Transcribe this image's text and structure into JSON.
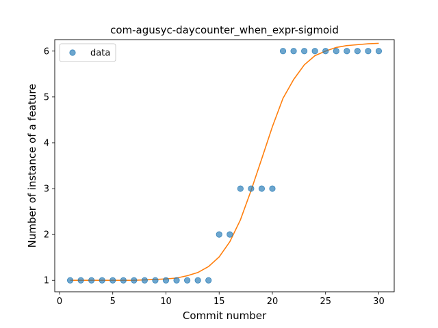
{
  "chart_data": {
    "type": "scatter",
    "title": "com-agusyc-daycounter_when_expr-sigmoid",
    "xlabel": "Commit number",
    "ylabel": "Number of instance of a feature",
    "xlim": [
      -0.45,
      31.45
    ],
    "ylim": [
      0.75,
      6.25
    ],
    "xticks": [
      0,
      5,
      10,
      15,
      20,
      25,
      30
    ],
    "yticks": [
      1,
      2,
      3,
      4,
      5,
      6
    ],
    "grid": false,
    "legend": {
      "position": "top-left",
      "entries": [
        "data"
      ]
    },
    "colors": {
      "data": "#1f77b4",
      "fit": "#ff7f0e"
    },
    "series": [
      {
        "name": "data",
        "kind": "scatter",
        "x": [
          1,
          2,
          3,
          4,
          5,
          6,
          7,
          8,
          9,
          10,
          11,
          12,
          13,
          14,
          15,
          16,
          17,
          18,
          19,
          20,
          21,
          22,
          23,
          24,
          25,
          26,
          27,
          28,
          29,
          30
        ],
        "y": [
          1,
          1,
          1,
          1,
          1,
          1,
          1,
          1,
          1,
          1,
          1,
          1,
          1,
          1,
          2,
          2,
          3,
          3,
          3,
          3,
          6,
          6,
          6,
          6,
          6,
          6,
          6,
          6,
          6,
          6
        ]
      },
      {
        "kind": "line",
        "x": [
          1,
          2,
          3,
          4,
          5,
          6,
          7,
          8,
          9,
          10,
          11,
          12,
          13,
          14,
          15,
          16,
          17,
          18,
          19,
          20,
          21,
          22,
          23,
          24,
          25,
          26,
          27,
          28,
          29,
          30
        ],
        "y": [
          1.0,
          1.0,
          1.0,
          1.0,
          1.0,
          1.0,
          1.0,
          1.01,
          1.02,
          1.03,
          1.05,
          1.1,
          1.17,
          1.3,
          1.51,
          1.84,
          2.32,
          2.96,
          3.65,
          4.35,
          4.97,
          5.38,
          5.7,
          5.9,
          6.0,
          6.08,
          6.12,
          6.14,
          6.16,
          6.17
        ]
      }
    ]
  }
}
